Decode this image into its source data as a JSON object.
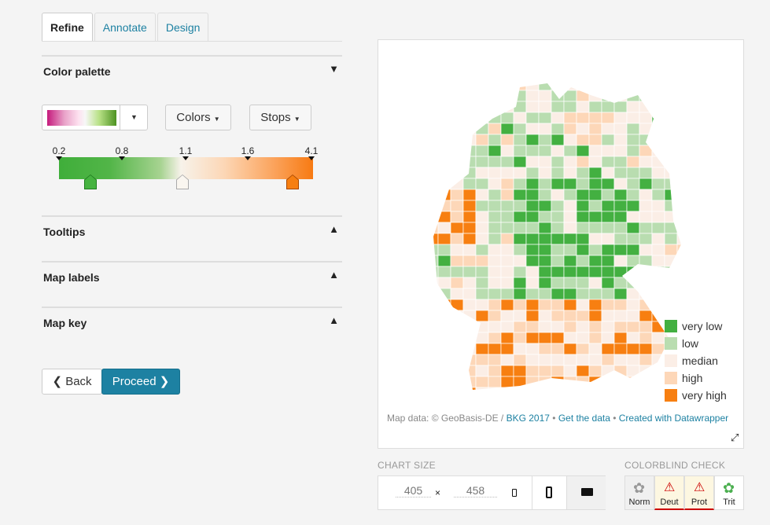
{
  "tabs": [
    "Refine",
    "Annotate",
    "Design"
  ],
  "sections": {
    "color_palette": "Color palette",
    "tooltips": "Tooltips",
    "map_labels": "Map labels",
    "map_key": "Map key"
  },
  "buttons": {
    "colors": "Colors",
    "stops": "Stops",
    "back": "Back",
    "proceed": "Proceed"
  },
  "scale": {
    "ticks": [
      "0.2",
      "0.8",
      "1.1",
      "1.6",
      "4.1"
    ]
  },
  "legend": [
    {
      "label": "very low",
      "color": "#43b041"
    },
    {
      "label": "low",
      "color": "#b9ddb0"
    },
    {
      "label": "median",
      "color": "#fbeee6"
    },
    {
      "label": "high",
      "color": "#fdd7b8"
    },
    {
      "label": "very high",
      "color": "#f77f11"
    }
  ],
  "footer": {
    "prefix": "Map data: © GeoBasis-DE / ",
    "bkg": "BKG 2017",
    "sep": " • ",
    "get_data": "Get the data",
    "created": "Created with Datawrapper"
  },
  "chart_size": {
    "label": "CHART SIZE",
    "width": "405",
    "x": "×",
    "height": "458"
  },
  "colorblind": {
    "label": "COLORBLIND CHECK",
    "options": [
      "Norm",
      "Deut",
      "Prot",
      "Trit"
    ]
  }
}
